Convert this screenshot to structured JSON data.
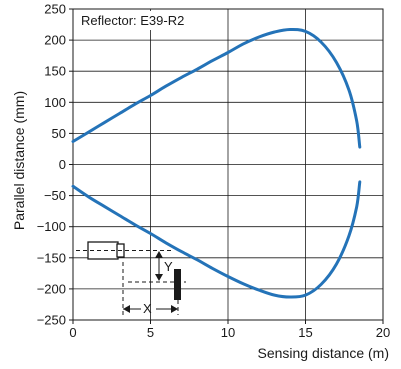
{
  "chart_data": {
    "type": "line",
    "annotation": "Reflector: E39-R2",
    "xlabel": "Sensing distance (m)",
    "ylabel": "Parallel distance (mm)",
    "xlim": [
      0,
      20
    ],
    "ylim": [
      -250,
      250
    ],
    "x_ticks": [
      0,
      5,
      10,
      15,
      20
    ],
    "y_ticks": [
      250,
      200,
      150,
      100,
      50,
      0,
      -50,
      -100,
      -150,
      -200,
      -250
    ],
    "x_tick_labels": [
      "0",
      "5",
      "10",
      "15",
      "20"
    ],
    "y_tick_labels": [
      "250",
      "200",
      "150",
      "100",
      "50",
      "0",
      "−50",
      "−100",
      "−150",
      "−200",
      "−250"
    ],
    "grid": true,
    "line_color": "#2473b8",
    "series": [
      {
        "values_x": [
          0,
          1,
          2,
          3,
          4,
          5,
          6,
          7,
          8,
          9,
          10,
          11,
          12,
          13,
          14,
          15,
          16,
          17,
          17.8,
          18.3,
          18.5
        ],
        "values_y": [
          37,
          52,
          67,
          82,
          97,
          111,
          126,
          140,
          153,
          167,
          180,
          194,
          205,
          213,
          217,
          214,
          197,
          164,
          120,
          70,
          28
        ]
      },
      {
        "values_x": [
          0,
          1,
          2,
          3,
          4,
          5,
          6,
          7,
          8,
          9,
          10,
          11,
          12,
          13,
          14,
          15,
          16,
          17,
          17.8,
          18.3,
          18.5
        ],
        "values_y": [
          -35,
          -52,
          -67,
          -82,
          -97,
          -111,
          -126,
          -140,
          -153,
          -167,
          -180,
          -192,
          -202,
          -210,
          -213,
          -210,
          -193,
          -160,
          -115,
          -68,
          -28
        ]
      }
    ],
    "diagram": {
      "y_label": "Y",
      "x_label": "X"
    }
  }
}
